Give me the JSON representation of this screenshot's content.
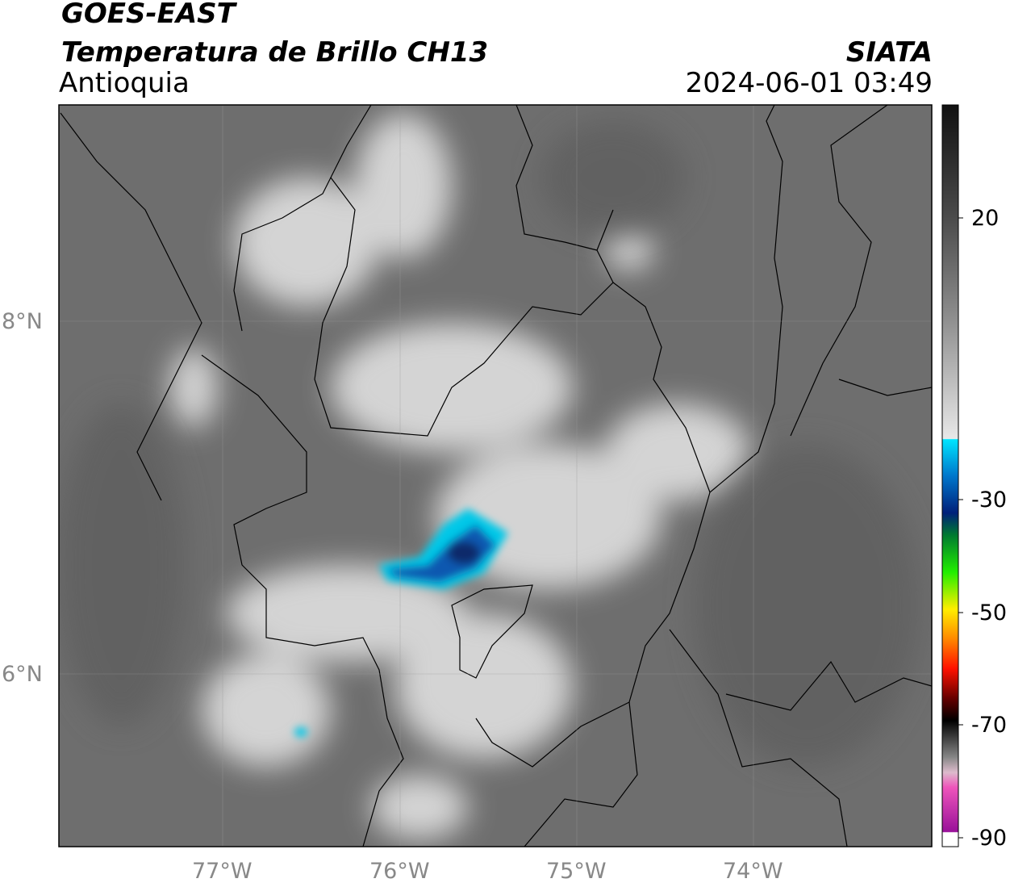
{
  "header": {
    "title": "GOES-EAST",
    "subtitle": "Temperatura de Brillo CH13",
    "region": "Antioquia",
    "source": "SIATA",
    "timestamp": "2024-06-01 03:49"
  },
  "map": {
    "lon_ticks": [
      "77°W",
      "76°W",
      "75°W",
      "74°W"
    ],
    "lat_ticks": [
      "8°N",
      "6°N"
    ]
  },
  "colorbar": {
    "ticks": [
      "20",
      "-30",
      "-50",
      "-70",
      "-90"
    ]
  }
}
